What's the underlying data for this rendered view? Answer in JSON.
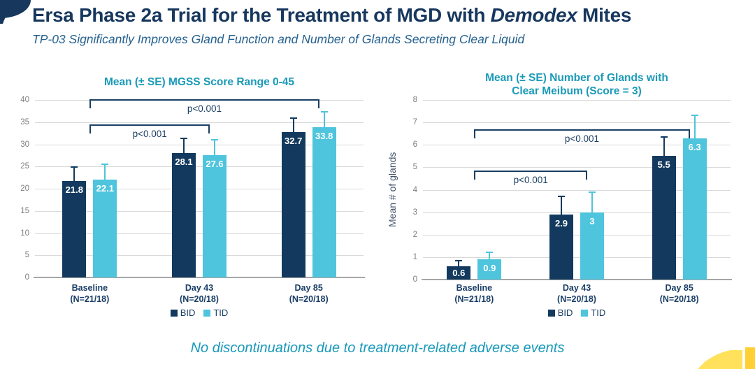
{
  "header": {
    "title_prefix": "Ersa Phase 2a Trial for the Treatment of MGD with ",
    "title_italic": "Demodex",
    "title_suffix": " Mites",
    "subtitle": "TP-03 Significantly Improves Gland Function and Number of Glands Secreting Clear Liquid"
  },
  "footer": {
    "note": "No discontinuations due to treatment-related adverse events"
  },
  "colors": {
    "title_navy": "#17375d",
    "subtitle_blue": "#25618f",
    "chart_title_teal": "#1b9ab8",
    "bid_navy": "#133a5e",
    "tid_lightblue": "#4fc4dd",
    "bracket_navy": "#1b3f63",
    "grid_gray": "#d9d9d9",
    "axis_gray": "#a6a6a6",
    "tick_gray": "#808080",
    "footer_teal": "#1899ba",
    "yellow_light": "#ffe15c",
    "yellow_dark": "#fed034"
  },
  "legend": {
    "items": [
      {
        "label": "BID",
        "color": "#133a5e"
      },
      {
        "label": "TID",
        "color": "#4fc4dd"
      }
    ]
  },
  "chart_data": [
    {
      "type": "bar",
      "title": "Mean (± SE) MGSS Score Range 0-45",
      "title_lines": [
        "Mean (± SE) MGSS Score Range 0-45"
      ],
      "categories": [
        [
          "Baseline",
          "(N=21/18)"
        ],
        [
          "Day 43",
          "(N=20/18)"
        ],
        [
          "Day 85",
          "(N=20/18)"
        ]
      ],
      "series": [
        {
          "name": "BID",
          "color": "#133a5e",
          "values": [
            21.8,
            28.1,
            32.7
          ],
          "se": [
            3.1,
            3.2,
            3.2
          ]
        },
        {
          "name": "TID",
          "color": "#4fc4dd",
          "values": [
            22.1,
            27.6,
            33.8
          ],
          "se": [
            3.4,
            3.4,
            3.5
          ]
        }
      ],
      "ylim": [
        0,
        40
      ],
      "ytick_step": 5,
      "ylabel": "",
      "grid": true,
      "legend_position": "bottom",
      "brackets": [
        {
          "from": 0,
          "to": 1,
          "y": 34.5,
          "label": "p<0.001"
        },
        {
          "from": 0,
          "to": 2,
          "y": 40.2,
          "label": "p<0.001"
        }
      ]
    },
    {
      "type": "bar",
      "title": "Mean (± SE) Number of Glands with Clear Meibum (Score = 3)",
      "title_lines": [
        "Mean (± SE) Number of Glands with",
        "Clear Meibum (Score = 3)"
      ],
      "categories": [
        [
          "Baseline",
          "(N=21/18)"
        ],
        [
          "Day 43",
          "(N=20/18)"
        ],
        [
          "Day 85",
          "(N=20/18)"
        ]
      ],
      "series": [
        {
          "name": "BID",
          "color": "#133a5e",
          "values": [
            0.6,
            2.9,
            5.5
          ],
          "se": [
            0.25,
            0.8,
            0.85
          ]
        },
        {
          "name": "TID",
          "color": "#4fc4dd",
          "values": [
            0.9,
            3,
            6.3
          ],
          "se": [
            0.3,
            0.9,
            1.0
          ]
        }
      ],
      "ylim": [
        0,
        8
      ],
      "ytick_step": 1,
      "ylabel": "Mean # of glands",
      "grid": true,
      "legend_position": "bottom",
      "brackets": [
        {
          "from": 0,
          "to": 1,
          "y": 4.85,
          "label": "p<0.001"
        },
        {
          "from": 0,
          "to": 2,
          "y": 6.7,
          "label": "p<0.001"
        }
      ]
    }
  ]
}
